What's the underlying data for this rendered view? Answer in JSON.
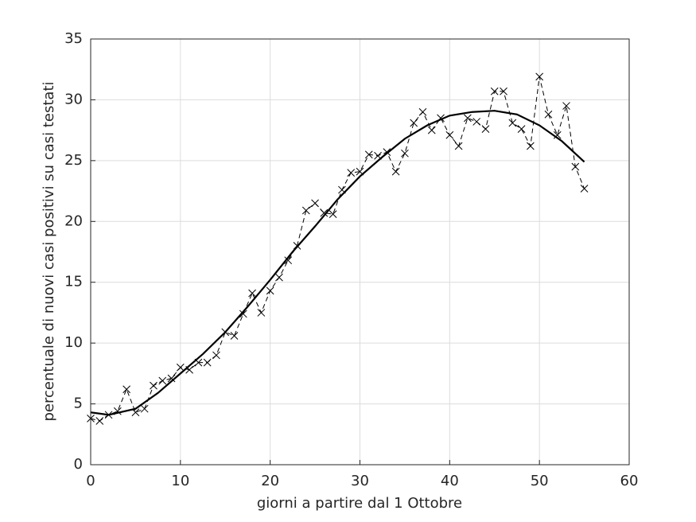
{
  "chart_data": {
    "type": "line",
    "xlabel": "giorni a partire dal 1 Ottobre",
    "ylabel": "percentuale di nuovi casi positivi su casi testati",
    "xlim": [
      0,
      60
    ],
    "xticks": [
      0,
      10,
      20,
      30,
      40,
      50,
      60
    ],
    "ylim": [
      0,
      35
    ],
    "yticks": [
      0,
      5,
      10,
      15,
      20,
      25,
      30,
      35
    ],
    "grid": true,
    "series": [
      {
        "color": "#000000",
        "linestyle": "dashed",
        "marker": "x",
        "x": [
          0,
          1,
          2,
          3,
          4,
          5,
          6,
          7,
          8,
          9,
          10,
          11,
          12,
          13,
          14,
          15,
          16,
          17,
          18,
          19,
          20,
          21,
          22,
          23,
          24,
          25,
          26,
          27,
          28,
          29,
          30,
          31,
          32,
          33,
          34,
          35,
          36,
          37,
          38,
          39,
          40,
          41,
          42,
          43,
          44,
          45,
          46,
          47,
          48,
          49,
          50,
          51,
          52,
          53,
          54,
          55
        ],
        "values": [
          3.8,
          3.6,
          4.1,
          4.4,
          6.2,
          4.3,
          4.6,
          6.5,
          6.9,
          7.1,
          8.0,
          7.8,
          8.4,
          8.4,
          9.0,
          10.9,
          10.6,
          12.4,
          14.1,
          12.5,
          14.3,
          15.4,
          16.8,
          18.0,
          20.9,
          21.5,
          20.7,
          20.6,
          22.6,
          24.0,
          24.1,
          25.5,
          25.4,
          25.7,
          24.1,
          25.6,
          28.1,
          29.0,
          27.5,
          28.5,
          27.1,
          26.2,
          28.5,
          28.2,
          27.6,
          30.7,
          30.7,
          28.1,
          27.6,
          26.2,
          31.9,
          28.8,
          27.1,
          29.5,
          24.5,
          22.7
        ]
      },
      {
        "color": "#000000",
        "linestyle": "solid",
        "marker": "none",
        "x": [
          0,
          2,
          5,
          7.5,
          10,
          12.5,
          15,
          17.5,
          20,
          22.5,
          25,
          27.5,
          30,
          32.5,
          35,
          37.5,
          40,
          42.5,
          45,
          47.5,
          50,
          52.5,
          55
        ],
        "values": [
          4.3,
          4.1,
          4.6,
          5.9,
          7.5,
          9.1,
          10.9,
          13.0,
          15.2,
          17.5,
          19.6,
          21.8,
          23.7,
          25.3,
          26.8,
          27.9,
          28.7,
          29.0,
          29.1,
          28.8,
          27.9,
          26.6,
          24.9
        ]
      }
    ]
  }
}
